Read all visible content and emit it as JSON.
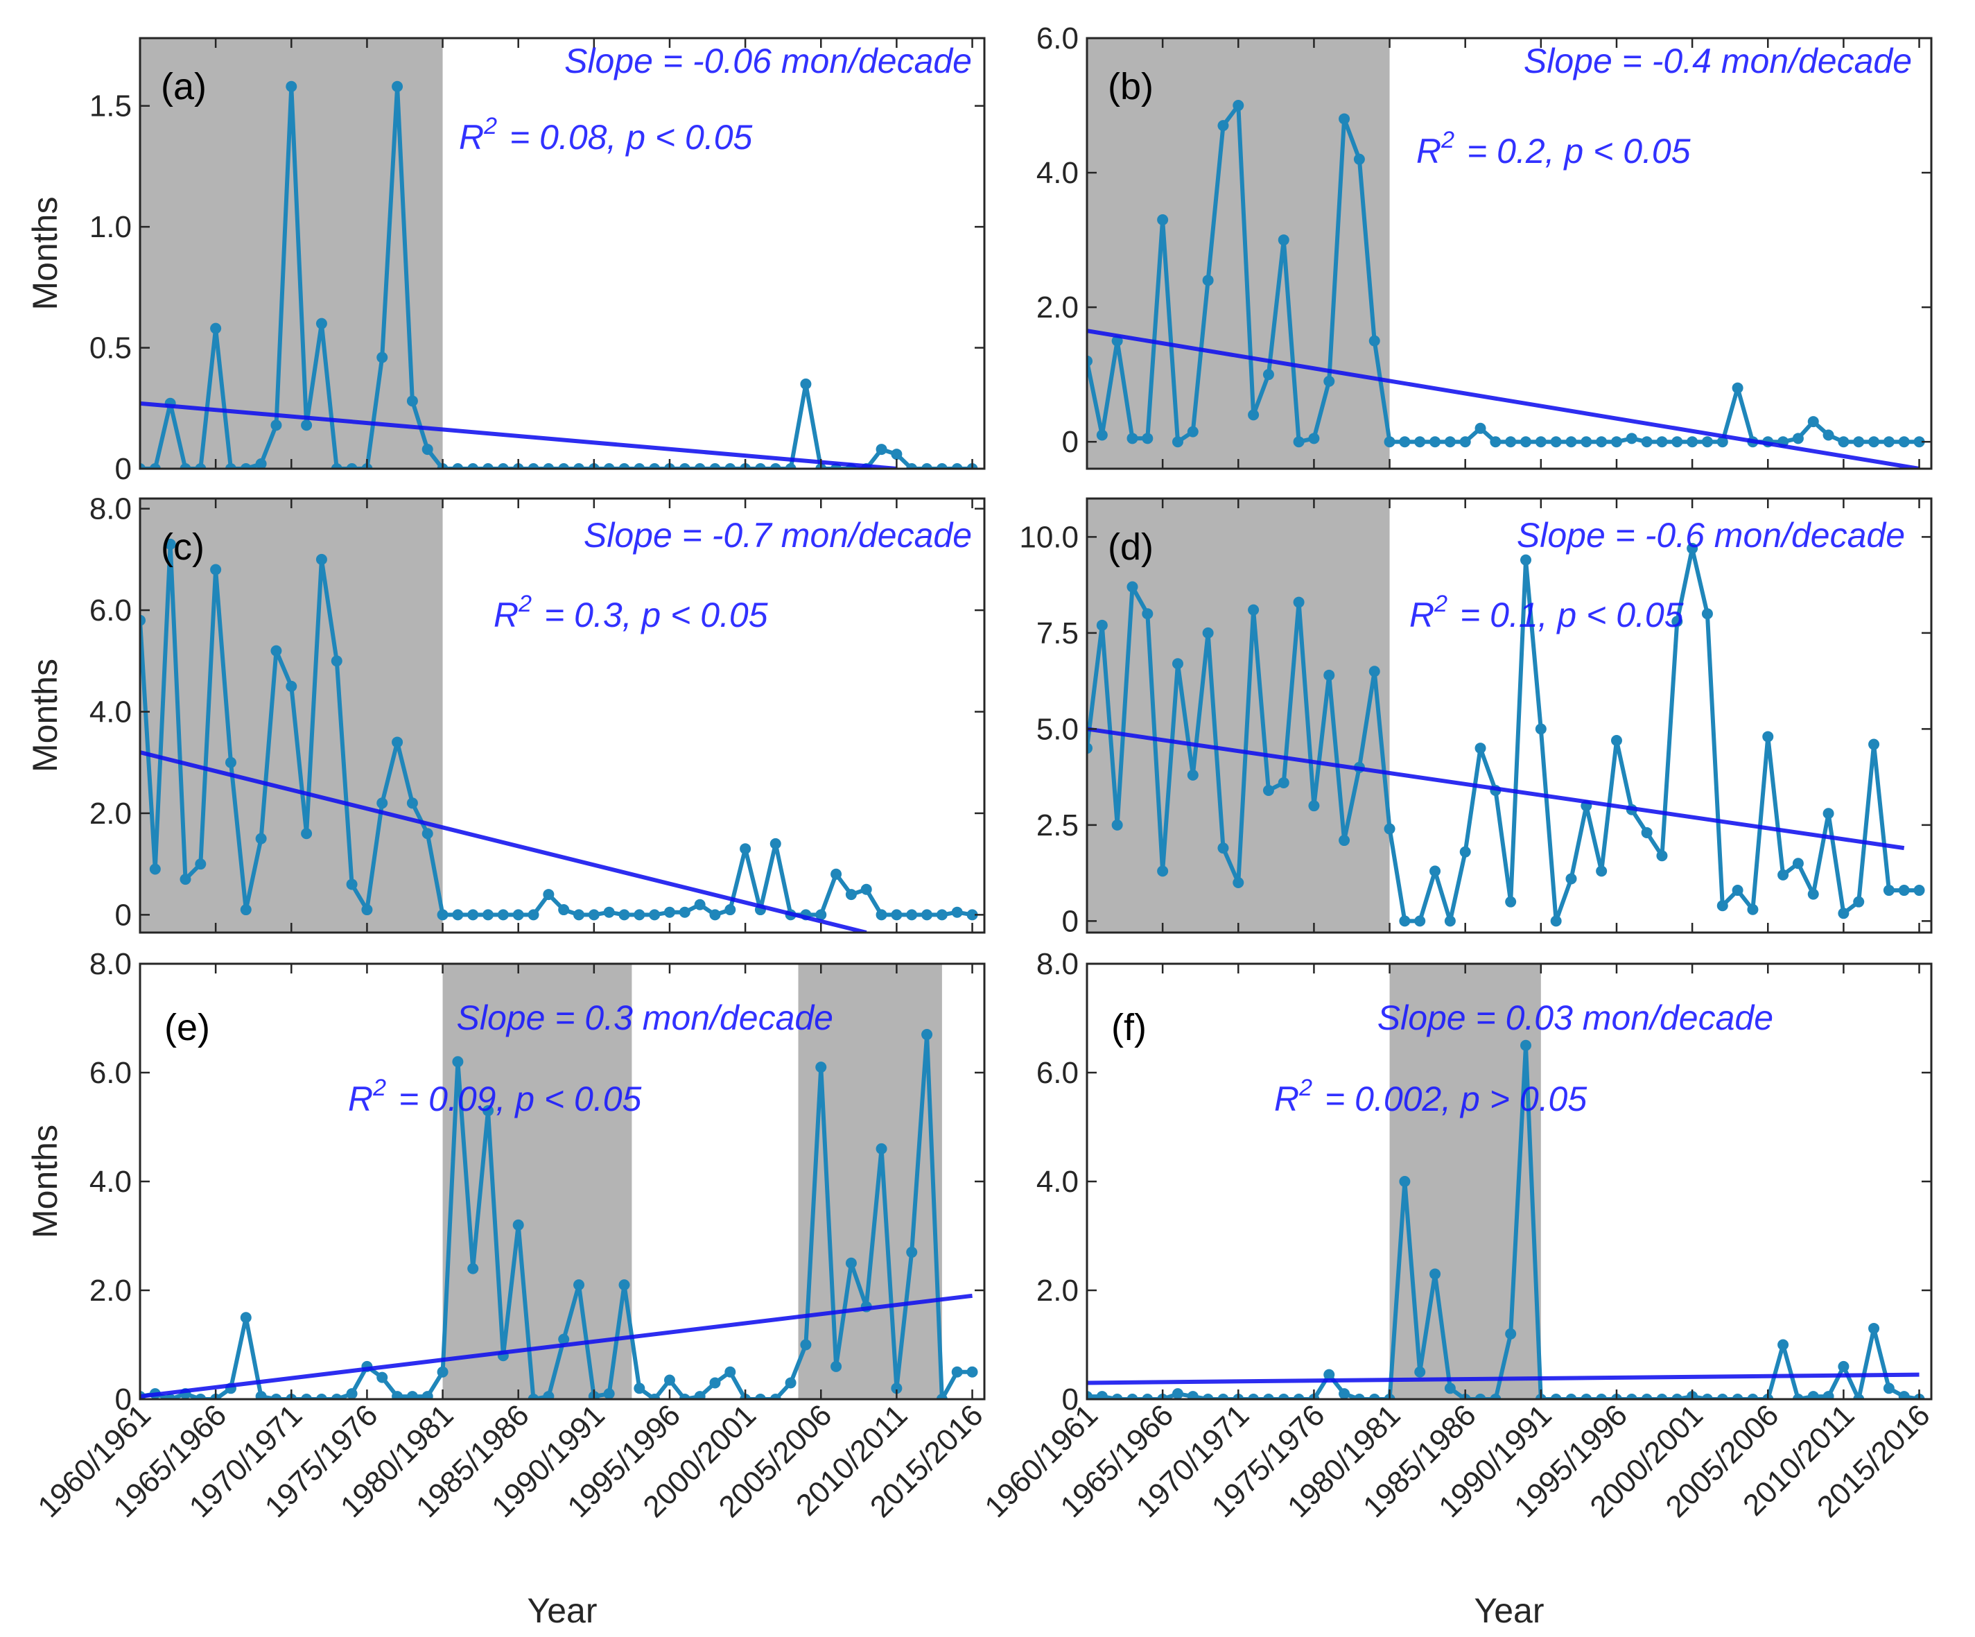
{
  "figure": {
    "shared_x_tick_labels": [
      "1960/1961",
      "1965/1966",
      "1970/1971",
      "1975/1976",
      "1980/1981",
      "1985/1986",
      "1990/1991",
      "1995/1996",
      "2000/2001",
      "2005/2006",
      "2010/2011",
      "2015/2016"
    ],
    "xlabel": "Year",
    "ylabel": "Months"
  },
  "colors": {
    "series": "#1f86ba",
    "trend": "#1010ee",
    "shade": "#b4b4b4",
    "annotation": "#1414ff",
    "axis": "#262626"
  },
  "chart_data": [
    {
      "type": "line",
      "panel": "(a)",
      "x": [
        1960,
        1961,
        1962,
        1963,
        1964,
        1965,
        1966,
        1967,
        1968,
        1969,
        1970,
        1971,
        1972,
        1973,
        1974,
        1975,
        1976,
        1977,
        1978,
        1979,
        1980,
        1981,
        1982,
        1983,
        1984,
        1985,
        1986,
        1987,
        1988,
        1989,
        1990,
        1991,
        1992,
        1993,
        1994,
        1995,
        1996,
        1997,
        1998,
        1999,
        2000,
        2001,
        2002,
        2003,
        2004,
        2005,
        2006,
        2007,
        2008,
        2009,
        2010,
        2011,
        2012,
        2013,
        2014,
        2015
      ],
      "series": [
        {
          "name": "Months",
          "values": [
            0,
            0,
            0.27,
            0,
            0,
            0.58,
            0,
            0,
            0.02,
            0.18,
            1.58,
            0.18,
            0.6,
            0,
            0,
            0,
            0.46,
            1.58,
            0.28,
            0.08,
            0,
            0,
            0,
            0,
            0,
            0,
            0,
            0,
            0,
            0,
            0,
            0,
            0,
            0,
            0,
            0,
            0,
            0,
            0,
            0,
            0,
            0,
            0,
            0,
            0.35,
            0,
            0,
            0,
            0,
            0.08,
            0.06,
            0,
            0,
            0,
            0,
            0
          ]
        }
      ],
      "trend": {
        "x": [
          1960,
          2010
        ],
        "y": [
          0.27,
          0
        ]
      },
      "shaded_periods": [
        [
          1960,
          1980
        ]
      ],
      "annotation": {
        "slope": "Slope = -0.06 mon/decade",
        "r2_value": "= 0.08, p < 0.05"
      },
      "xlim": [
        1960,
        2015.8
      ],
      "ylim": [
        0,
        1.78
      ],
      "yticks": [
        0,
        0.5,
        1.0,
        1.5
      ],
      "ytick_labels": [
        "0",
        "0.5",
        "1.0",
        "1.5"
      ],
      "xlabel": "",
      "ylabel": "Months"
    },
    {
      "type": "line",
      "panel": "(b)",
      "x": [
        1960,
        1961,
        1962,
        1963,
        1964,
        1965,
        1966,
        1967,
        1968,
        1969,
        1970,
        1971,
        1972,
        1973,
        1974,
        1975,
        1976,
        1977,
        1978,
        1979,
        1980,
        1981,
        1982,
        1983,
        1984,
        1985,
        1986,
        1987,
        1988,
        1989,
        1990,
        1991,
        1992,
        1993,
        1994,
        1995,
        1996,
        1997,
        1998,
        1999,
        2000,
        2001,
        2002,
        2003,
        2004,
        2005,
        2006,
        2007,
        2008,
        2009,
        2010,
        2011,
        2012,
        2013,
        2014,
        2015
      ],
      "series": [
        {
          "name": "Months",
          "values": [
            1.2,
            0.1,
            1.5,
            0.05,
            0.05,
            3.3,
            0,
            0.15,
            2.4,
            4.7,
            5.0,
            0.4,
            1.0,
            3.0,
            0,
            0.05,
            0.9,
            4.8,
            4.2,
            1.5,
            0,
            0,
            0,
            0,
            0,
            0,
            0.2,
            0,
            0,
            0,
            0,
            0,
            0,
            0,
            0,
            0,
            0.05,
            0,
            0,
            0,
            0,
            0,
            0,
            0.8,
            0,
            0,
            0,
            0.05,
            0.3,
            0.1,
            0,
            0,
            0,
            0,
            0,
            0
          ]
        }
      ],
      "trend": {
        "x": [
          1960,
          2015
        ],
        "y": [
          1.65,
          -0.4
        ]
      },
      "shaded_periods": [
        [
          1960,
          1980
        ]
      ],
      "annotation": {
        "slope": "Slope = -0.4 mon/decade",
        "r2_value": "= 0.2, p < 0.05"
      },
      "xlim": [
        1960,
        2015.8
      ],
      "ylim": [
        -0.4,
        6.0
      ],
      "yticks": [
        0,
        2,
        4,
        6
      ],
      "ytick_labels": [
        "0",
        "2.0",
        "4.0",
        "6.0"
      ],
      "xlabel": "",
      "ylabel": ""
    },
    {
      "type": "line",
      "panel": "(c)",
      "x": [
        1960,
        1961,
        1962,
        1963,
        1964,
        1965,
        1966,
        1967,
        1968,
        1969,
        1970,
        1971,
        1972,
        1973,
        1974,
        1975,
        1976,
        1977,
        1978,
        1979,
        1980,
        1981,
        1982,
        1983,
        1984,
        1985,
        1986,
        1987,
        1988,
        1989,
        1990,
        1991,
        1992,
        1993,
        1994,
        1995,
        1996,
        1997,
        1998,
        1999,
        2000,
        2001,
        2002,
        2003,
        2004,
        2005,
        2006,
        2007,
        2008,
        2009,
        2010,
        2011,
        2012,
        2013,
        2014,
        2015
      ],
      "series": [
        {
          "name": "Months",
          "values": [
            5.8,
            0.9,
            7.3,
            0.7,
            1.0,
            6.8,
            3.0,
            0.1,
            1.5,
            5.2,
            4.5,
            1.6,
            7.0,
            5.0,
            0.6,
            0.1,
            2.2,
            3.4,
            2.2,
            1.6,
            0,
            0,
            0,
            0,
            0,
            0,
            0,
            0.4,
            0.1,
            0,
            0,
            0.05,
            0,
            0,
            0,
            0.05,
            0.05,
            0.2,
            0,
            0.1,
            1.3,
            0.1,
            1.4,
            0,
            0,
            0,
            0.8,
            0.4,
            0.5,
            0,
            0,
            0,
            0,
            0,
            0.05,
            0
          ]
        }
      ],
      "trend": {
        "x": [
          1960,
          2008
        ],
        "y": [
          3.2,
          -0.35
        ]
      },
      "shaded_periods": [
        [
          1960,
          1980
        ]
      ],
      "annotation": {
        "slope": "Slope = -0.7 mon/decade",
        "r2_value": "= 0.3, p < 0.05"
      },
      "xlim": [
        1960,
        2015.8
      ],
      "ylim": [
        -0.35,
        8.2
      ],
      "yticks": [
        0,
        2,
        4,
        6,
        8
      ],
      "ytick_labels": [
        "0",
        "2.0",
        "4.0",
        "6.0",
        "8.0"
      ],
      "xlabel": "",
      "ylabel": "Months"
    },
    {
      "type": "line",
      "panel": "(d)",
      "x": [
        1960,
        1961,
        1962,
        1963,
        1964,
        1965,
        1966,
        1967,
        1968,
        1969,
        1970,
        1971,
        1972,
        1973,
        1974,
        1975,
        1976,
        1977,
        1978,
        1979,
        1980,
        1981,
        1982,
        1983,
        1984,
        1985,
        1986,
        1987,
        1988,
        1989,
        1990,
        1991,
        1992,
        1993,
        1994,
        1995,
        1996,
        1997,
        1998,
        1999,
        2000,
        2001,
        2002,
        2003,
        2004,
        2005,
        2006,
        2007,
        2008,
        2009,
        2010,
        2011,
        2012,
        2013,
        2014,
        2015
      ],
      "series": [
        {
          "name": "Months",
          "values": [
            4.5,
            7.7,
            2.5,
            8.7,
            8.0,
            1.3,
            6.7,
            3.8,
            7.5,
            1.9,
            1.0,
            8.1,
            3.4,
            3.6,
            8.3,
            3.0,
            6.4,
            2.1,
            4.0,
            6.5,
            2.4,
            0,
            0,
            1.3,
            0,
            1.8,
            4.5,
            3.4,
            0.5,
            9.4,
            5.0,
            0,
            1.1,
            3.0,
            1.3,
            4.7,
            2.9,
            2.3,
            1.7,
            7.8,
            9.7,
            8.0,
            0.4,
            0.8,
            0.3,
            4.8,
            1.2,
            1.5,
            0.7,
            2.8,
            0.2,
            0.5,
            4.6,
            0.8,
            0.8,
            0.8
          ]
        }
      ],
      "trend": {
        "x": [
          1960,
          2014
        ],
        "y": [
          5.0,
          1.9
        ]
      },
      "shaded_periods": [
        [
          1960,
          1980
        ]
      ],
      "annotation": {
        "slope": "Slope = -0.6 mon/decade",
        "r2_value": "= 0.1, p < 0.05"
      },
      "xlim": [
        1960,
        2015.8
      ],
      "ylim": [
        -0.3,
        11.0
      ],
      "yticks": [
        0,
        2.5,
        5.0,
        7.5,
        10.0
      ],
      "ytick_labels": [
        "0",
        "2.5",
        "5.0",
        "7.5",
        "10.0"
      ],
      "xlabel": "",
      "ylabel": ""
    },
    {
      "type": "line",
      "panel": "(e)",
      "x": [
        1960,
        1961,
        1962,
        1963,
        1964,
        1965,
        1966,
        1967,
        1968,
        1969,
        1970,
        1971,
        1972,
        1973,
        1974,
        1975,
        1976,
        1977,
        1978,
        1979,
        1980,
        1981,
        1982,
        1983,
        1984,
        1985,
        1986,
        1987,
        1988,
        1989,
        1990,
        1991,
        1992,
        1993,
        1994,
        1995,
        1996,
        1997,
        1998,
        1999,
        2000,
        2001,
        2002,
        2003,
        2004,
        2005,
        2006,
        2007,
        2008,
        2009,
        2010,
        2011,
        2012,
        2013,
        2014,
        2015
      ],
      "series": [
        {
          "name": "Months",
          "values": [
            0.05,
            0.1,
            0,
            0.1,
            0,
            0,
            0.2,
            1.5,
            0.05,
            0,
            0,
            0,
            0,
            0,
            0.1,
            0.6,
            0.4,
            0.05,
            0.05,
            0.05,
            0.5,
            6.2,
            2.4,
            5.3,
            0.8,
            3.2,
            0,
            0.05,
            1.1,
            2.1,
            0.05,
            0.1,
            2.1,
            0.2,
            0,
            0.35,
            0,
            0.05,
            0.3,
            0.5,
            0,
            0,
            0,
            0.3,
            1.0,
            6.1,
            0.6,
            2.5,
            1.7,
            4.6,
            0.2,
            2.7,
            6.7,
            0,
            0.5,
            0.5
          ]
        }
      ],
      "trend": {
        "x": [
          1960,
          2015
        ],
        "y": [
          0.05,
          1.9
        ]
      },
      "shaded_periods": [
        [
          1980,
          1992.5
        ],
        [
          2003.5,
          2013
        ]
      ],
      "annotation": {
        "slope": "Slope = 0.3 mon/decade",
        "r2_value": "= 0.09, p < 0.05"
      },
      "xlim": [
        1960,
        2015.8
      ],
      "ylim": [
        0,
        8.0
      ],
      "yticks": [
        0,
        2,
        4,
        6,
        8
      ],
      "ytick_labels": [
        "0",
        "2.0",
        "4.0",
        "6.0",
        "8.0"
      ],
      "xlabel": "Year",
      "ylabel": "Months"
    },
    {
      "type": "line",
      "panel": "(f)",
      "x": [
        1960,
        1961,
        1962,
        1963,
        1964,
        1965,
        1966,
        1967,
        1968,
        1969,
        1970,
        1971,
        1972,
        1973,
        1974,
        1975,
        1976,
        1977,
        1978,
        1979,
        1980,
        1981,
        1982,
        1983,
        1984,
        1985,
        1986,
        1987,
        1988,
        1989,
        1990,
        1991,
        1992,
        1993,
        1994,
        1995,
        1996,
        1997,
        1998,
        1999,
        2000,
        2001,
        2002,
        2003,
        2004,
        2005,
        2006,
        2007,
        2008,
        2009,
        2010,
        2011,
        2012,
        2013,
        2014,
        2015
      ],
      "series": [
        {
          "name": "Months",
          "values": [
            0.05,
            0.05,
            0,
            0,
            0,
            0,
            0.1,
            0.05,
            0,
            0,
            0,
            0,
            0,
            0,
            0,
            0,
            0.45,
            0.1,
            0,
            0,
            0,
            4.0,
            0.5,
            2.3,
            0.2,
            0,
            0,
            0,
            1.2,
            6.5,
            0,
            0,
            0,
            0,
            0,
            0,
            0,
            0,
            0,
            0,
            0.05,
            0,
            0,
            0,
            0,
            0,
            1.0,
            0,
            0.05,
            0.05,
            0.6,
            0,
            1.3,
            0.2,
            0.05,
            0
          ]
        }
      ],
      "trend": {
        "x": [
          1960,
          2015
        ],
        "y": [
          0.3,
          0.45
        ]
      },
      "shaded_periods": [
        [
          1980,
          1990
        ]
      ],
      "annotation": {
        "slope": "Slope = 0.03 mon/decade",
        "r2_value": "= 0.002, p > 0.05"
      },
      "xlim": [
        1960,
        2015.8
      ],
      "ylim": [
        0,
        8.0
      ],
      "yticks": [
        0,
        2,
        4,
        6,
        8
      ],
      "ytick_labels": [
        "0",
        "2.0",
        "4.0",
        "6.0",
        "8.0"
      ],
      "xlabel": "Year",
      "ylabel": ""
    }
  ]
}
